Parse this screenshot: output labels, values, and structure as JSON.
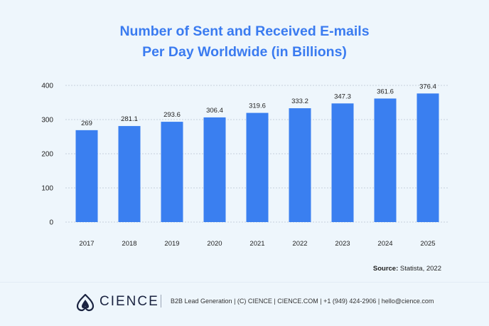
{
  "title": {
    "line1": "Number of Sent and Received E-mails",
    "line2": "Per Day Worldwide (in Billions)"
  },
  "colors": {
    "bar": "#3a7ff0",
    "title": "#3a7bf0",
    "grid": "#b9c3cf",
    "text": "#222222"
  },
  "chart_data": {
    "type": "bar",
    "title": "Number of Sent and Received E-mails Per Day Worldwide (in Billions)",
    "categories": [
      "2017",
      "2018",
      "2019",
      "2020",
      "2021",
      "2022",
      "2023",
      "2024",
      "2025"
    ],
    "values": [
      269,
      281.1,
      293.6,
      306.4,
      319.6,
      333.2,
      347.3,
      361.6,
      376.4
    ],
    "value_labels": [
      "269",
      "281.1",
      "293.6",
      "306.4",
      "319.6",
      "333.2",
      "347.3",
      "361.6",
      "376.4"
    ],
    "xlabel": "",
    "ylabel": "",
    "ylim": [
      0,
      400
    ],
    "yticks": [
      0,
      100,
      200,
      300,
      400
    ],
    "ytick_labels": [
      "0",
      "100",
      "200",
      "300",
      "400"
    ],
    "grid": true
  },
  "source": {
    "label": "Source:",
    "text": "Statista, 2022"
  },
  "footer": {
    "brand": "CIENCE",
    "contact": "B2B Lead Generation | (C) CIENCE | CIENCE.COM | +1 (949) 424-2906 | hello@cience.com"
  }
}
